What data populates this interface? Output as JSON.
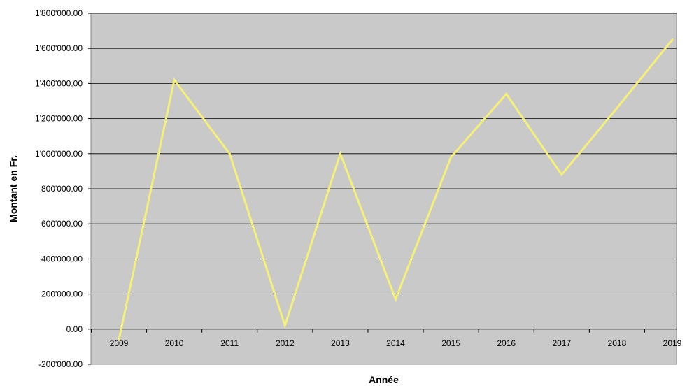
{
  "chart_data": {
    "type": "line",
    "title": "",
    "xlabel": "Année",
    "ylabel": "Montant en Fr.",
    "categories": [
      "2009",
      "2010",
      "2011",
      "2012",
      "2013",
      "2014",
      "2015",
      "2016",
      "2017",
      "2018",
      "2019"
    ],
    "series": [
      {
        "values": [
          -60000,
          1420000,
          1000000,
          20000,
          1000000,
          170000,
          980000,
          1340000,
          880000,
          1260000,
          1650000
        ],
        "color": "#f5f07a"
      }
    ],
    "ylim": [
      -200000,
      1800000
    ],
    "y_ticks": [
      {
        "value": 1800000,
        "label": "1'800'000.00"
      },
      {
        "value": 1600000,
        "label": "1'600'000.00"
      },
      {
        "value": 1400000,
        "label": "1'400'000.00"
      },
      {
        "value": 1200000,
        "label": "1'200'000.00"
      },
      {
        "value": 1000000,
        "label": "1'000'000.00"
      },
      {
        "value": 800000,
        "label": "800'000.00"
      },
      {
        "value": 600000,
        "label": "600'000.00"
      },
      {
        "value": 400000,
        "label": "400'000.00"
      },
      {
        "value": 200000,
        "label": "200'000.00"
      },
      {
        "value": 0,
        "label": "0.00"
      },
      {
        "value": -200000,
        "label": "-200'000.00"
      }
    ],
    "grid": true,
    "legend": "none",
    "colors": {
      "plot_background": "#c9c9c9",
      "gridline": "#000000",
      "negative_tick_label": "#cc0000"
    }
  }
}
